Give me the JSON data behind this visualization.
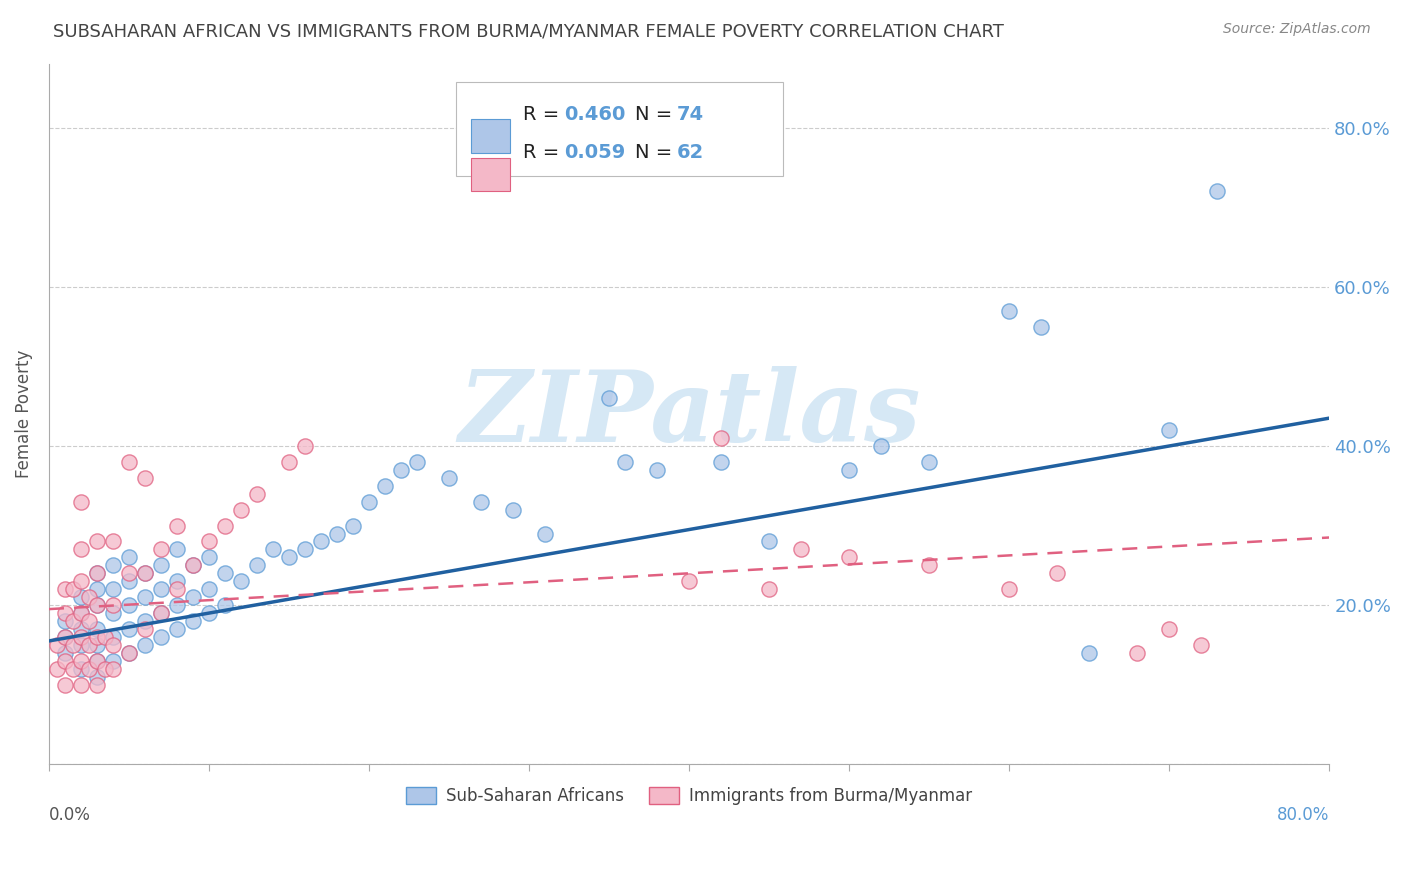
{
  "title": "SUBSAHARAN AFRICAN VS IMMIGRANTS FROM BURMA/MYANMAR FEMALE POVERTY CORRELATION CHART",
  "source": "Source: ZipAtlas.com",
  "ylabel": "Female Poverty",
  "blue_R": 0.46,
  "blue_N": 74,
  "pink_R": 0.059,
  "pink_N": 62,
  "blue_label": "Sub-Saharan Africans",
  "pink_label": "Immigrants from Burma/Myanmar",
  "blue_color": "#aec6e8",
  "pink_color": "#f4b8c8",
  "blue_edge_color": "#5b9bd5",
  "pink_edge_color": "#e06080",
  "blue_line_color": "#2060a0",
  "pink_line_color": "#e06080",
  "watermark_color": "#d6e8f5",
  "watermark": "ZIPatlas",
  "xlim": [
    0.0,
    0.8
  ],
  "ylim": [
    0.0,
    0.88
  ],
  "blue_line_x0": 0.0,
  "blue_line_y0": 0.155,
  "blue_line_x1": 0.8,
  "blue_line_y1": 0.435,
  "pink_line_x0": 0.0,
  "pink_line_y0": 0.195,
  "pink_line_x1": 0.8,
  "pink_line_y1": 0.285,
  "blue_scatter_x": [
    0.01,
    0.01,
    0.01,
    0.02,
    0.02,
    0.02,
    0.02,
    0.02,
    0.03,
    0.03,
    0.03,
    0.03,
    0.03,
    0.03,
    0.03,
    0.04,
    0.04,
    0.04,
    0.04,
    0.04,
    0.05,
    0.05,
    0.05,
    0.05,
    0.05,
    0.06,
    0.06,
    0.06,
    0.06,
    0.07,
    0.07,
    0.07,
    0.07,
    0.08,
    0.08,
    0.08,
    0.08,
    0.09,
    0.09,
    0.09,
    0.1,
    0.1,
    0.1,
    0.11,
    0.11,
    0.12,
    0.13,
    0.14,
    0.15,
    0.16,
    0.17,
    0.18,
    0.19,
    0.2,
    0.21,
    0.22,
    0.23,
    0.25,
    0.27,
    0.29,
    0.31,
    0.35,
    0.36,
    0.38,
    0.42,
    0.45,
    0.5,
    0.52,
    0.55,
    0.6,
    0.62,
    0.65,
    0.7,
    0.73
  ],
  "blue_scatter_y": [
    0.14,
    0.16,
    0.18,
    0.12,
    0.15,
    0.17,
    0.19,
    0.21,
    0.11,
    0.13,
    0.15,
    0.17,
    0.2,
    0.22,
    0.24,
    0.13,
    0.16,
    0.19,
    0.22,
    0.25,
    0.14,
    0.17,
    0.2,
    0.23,
    0.26,
    0.15,
    0.18,
    0.21,
    0.24,
    0.16,
    0.19,
    0.22,
    0.25,
    0.17,
    0.2,
    0.23,
    0.27,
    0.18,
    0.21,
    0.25,
    0.19,
    0.22,
    0.26,
    0.2,
    0.24,
    0.23,
    0.25,
    0.27,
    0.26,
    0.27,
    0.28,
    0.29,
    0.3,
    0.33,
    0.35,
    0.37,
    0.38,
    0.36,
    0.33,
    0.32,
    0.29,
    0.46,
    0.38,
    0.37,
    0.38,
    0.28,
    0.37,
    0.4,
    0.38,
    0.57,
    0.55,
    0.14,
    0.42,
    0.72
  ],
  "pink_scatter_x": [
    0.005,
    0.005,
    0.01,
    0.01,
    0.01,
    0.01,
    0.01,
    0.015,
    0.015,
    0.015,
    0.015,
    0.02,
    0.02,
    0.02,
    0.02,
    0.02,
    0.02,
    0.02,
    0.025,
    0.025,
    0.025,
    0.025,
    0.03,
    0.03,
    0.03,
    0.03,
    0.03,
    0.03,
    0.035,
    0.035,
    0.04,
    0.04,
    0.04,
    0.04,
    0.05,
    0.05,
    0.06,
    0.06,
    0.07,
    0.07,
    0.08,
    0.08,
    0.09,
    0.1,
    0.11,
    0.12,
    0.13,
    0.15,
    0.16,
    0.4,
    0.42,
    0.45,
    0.47,
    0.5,
    0.55,
    0.6,
    0.63,
    0.68,
    0.7,
    0.72,
    0.05,
    0.06
  ],
  "pink_scatter_y": [
    0.12,
    0.15,
    0.1,
    0.13,
    0.16,
    0.19,
    0.22,
    0.12,
    0.15,
    0.18,
    0.22,
    0.1,
    0.13,
    0.16,
    0.19,
    0.23,
    0.27,
    0.33,
    0.12,
    0.15,
    0.18,
    0.21,
    0.1,
    0.13,
    0.16,
    0.2,
    0.24,
    0.28,
    0.12,
    0.16,
    0.12,
    0.15,
    0.2,
    0.28,
    0.14,
    0.24,
    0.17,
    0.24,
    0.19,
    0.27,
    0.22,
    0.3,
    0.25,
    0.28,
    0.3,
    0.32,
    0.34,
    0.38,
    0.4,
    0.23,
    0.41,
    0.22,
    0.27,
    0.26,
    0.25,
    0.22,
    0.24,
    0.14,
    0.17,
    0.15,
    0.38,
    0.36
  ]
}
